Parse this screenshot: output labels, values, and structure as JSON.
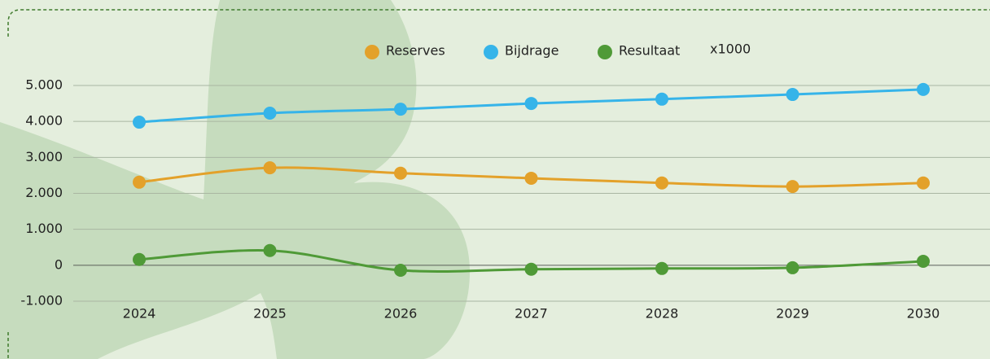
{
  "chart_data": {
    "type": "line",
    "categories": [
      "2024",
      "2025",
      "2026",
      "2027",
      "2028",
      "2029",
      "2030"
    ],
    "series": [
      {
        "name": "Reserves",
        "color": "#e3a12a",
        "values": [
          2310,
          2710,
          2560,
          2420,
          2290,
          2190,
          2290
        ]
      },
      {
        "name": "Bijdrage",
        "color": "#36b4e9",
        "values": [
          3980,
          4230,
          4340,
          4500,
          4620,
          4750,
          4890
        ]
      },
      {
        "name": "Resultaat",
        "color": "#4f9a37",
        "values": [
          160,
          410,
          -140,
          -110,
          -90,
          -70,
          110
        ]
      }
    ],
    "annotation": "x1000",
    "ylim": [
      -1000,
      5000
    ],
    "yticks": [
      {
        "value": -1000,
        "label": "-1.000"
      },
      0,
      {
        "value": 1000,
        "label": "1.000"
      },
      {
        "value": 2000,
        "label": "2.000"
      },
      {
        "value": 3000,
        "label": "3.000"
      },
      {
        "value": 4000,
        "label": "4.000"
      },
      {
        "value": 5000,
        "label": "5.000"
      }
    ],
    "grid": true
  }
}
